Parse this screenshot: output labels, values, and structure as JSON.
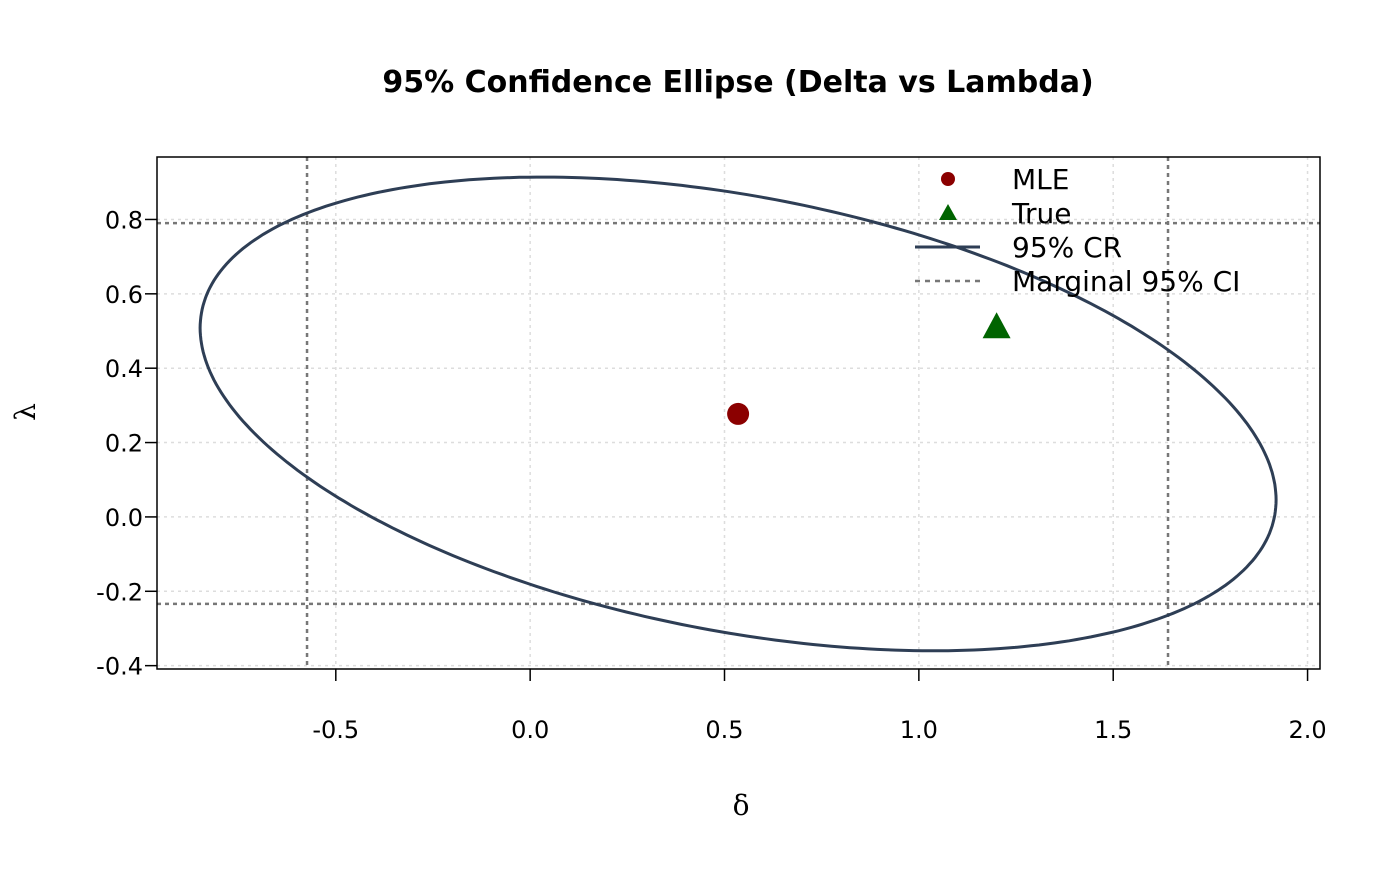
{
  "chart_data": {
    "type": "scatter",
    "title": "95% Confidence Ellipse (Delta vs Lambda)",
    "xlabel": "δ",
    "ylabel": "λ",
    "xlim": [
      -0.96,
      2.032
    ],
    "ylim": [
      -0.409,
      0.968
    ],
    "grid": true,
    "x_ticks": [
      "-0.5",
      "0.0",
      "0.5",
      "1.0",
      "1.5",
      "2.0"
    ],
    "y_ticks": [
      "-0.4",
      "-0.2",
      "0.0",
      "0.2",
      "0.4",
      "0.6",
      "0.8"
    ],
    "mle": {
      "x": 0.535,
      "y": 0.277
    },
    "true": {
      "x": 1.2,
      "y": 0.51
    },
    "ellipse": {
      "center": [
        0.535,
        0.277
      ],
      "x_half_range": 1.384,
      "y_half_range": 0.637,
      "phase": 1.942
    },
    "marginal_ci": {
      "delta": [
        -0.574,
        1.641
      ],
      "lambda": [
        -0.234,
        0.79
      ]
    },
    "legend": {
      "placement": "top-right",
      "entries": [
        "MLE",
        "True",
        "95% CR",
        "Marginal 95% CI"
      ]
    },
    "colors": {
      "mle": "#8b0000",
      "true": "#006400",
      "ellipse": "#2e3e55",
      "ci": "#777777",
      "grid": "#dddddd"
    }
  }
}
